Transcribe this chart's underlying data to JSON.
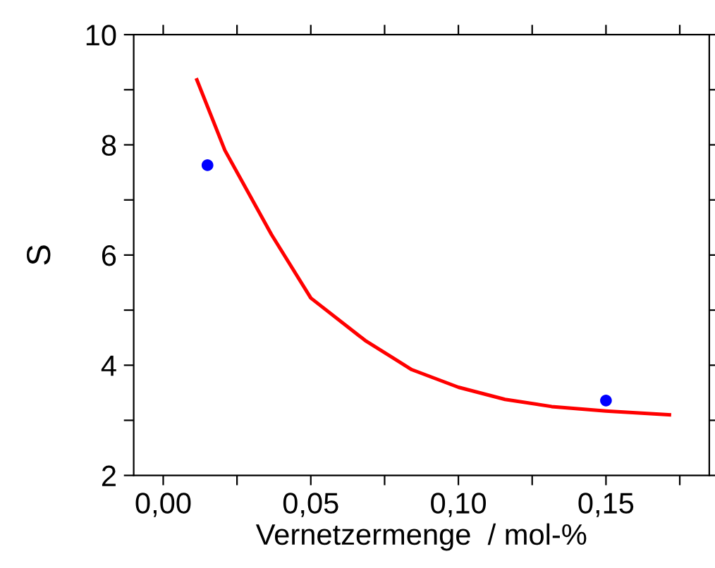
{
  "chart_data": {
    "type": "scatter",
    "xlabel": "Vernetzermenge  / mol-%",
    "ylabel": "S",
    "xlim": [
      -0.01,
      0.185
    ],
    "xticks": [
      {
        "value": 0,
        "label": "0,00"
      },
      {
        "value": 0.025,
        "label": null
      },
      {
        "value": 0.05,
        "label": "0,05"
      },
      {
        "value": 0.075,
        "label": null
      },
      {
        "value": 0.1,
        "label": "0,10"
      },
      {
        "value": 0.125,
        "label": null
      },
      {
        "value": 0.15,
        "label": "0,15"
      },
      {
        "value": 0.175,
        "label": null
      }
    ],
    "ylim": [
      2,
      10
    ],
    "yticks": [
      2,
      {
        "value": 3,
        "label": null
      },
      4,
      {
        "value": 5,
        "label": null
      },
      6,
      {
        "value": 7,
        "label": null
      },
      8,
      {
        "value": 9,
        "label": null
      },
      10
    ],
    "grid": false,
    "legend": false,
    "series": [
      {
        "color": "#0000ff",
        "marker": "circle",
        "x": [
          0.015,
          0.15
        ],
        "values": [
          7.63,
          3.36
        ]
      },
      {
        "type": "line",
        "color": "#ff0000",
        "line_style": "solid",
        "x": [
          0.0114,
          0.0209,
          0.0367,
          0.05,
          0.0684,
          0.0842,
          0.1,
          0.1158,
          0.1316,
          0.15,
          0.1715
        ],
        "values": [
          9.18,
          7.9,
          6.37,
          5.22,
          4.45,
          3.92,
          3.6,
          3.38,
          3.25,
          3.17,
          3.1
        ]
      }
    ]
  }
}
